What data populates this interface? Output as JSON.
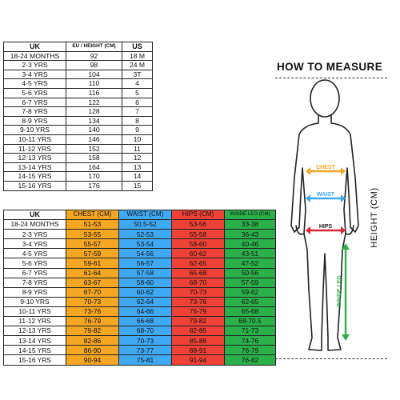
{
  "table1": {
    "headers": [
      "UK",
      "EU / HEIGHT (CM)",
      "US"
    ],
    "rows": [
      [
        "18-24 MONTHS",
        "92",
        "18 M"
      ],
      [
        "2-3 YRS",
        "98",
        "24 M"
      ],
      [
        "3-4 YRS",
        "104",
        "3T"
      ],
      [
        "4-5 YRS",
        "110",
        "4"
      ],
      [
        "5-6 YRS",
        "116",
        "5"
      ],
      [
        "6-7 YRS",
        "122",
        "6"
      ],
      [
        "7-8 YRS",
        "128",
        "7"
      ],
      [
        "8-9 YRS",
        "134",
        "8"
      ],
      [
        "9-10 YRS",
        "140",
        "9"
      ],
      [
        "10-11 YRS",
        "146",
        "10"
      ],
      [
        "11-12 YRS",
        "152",
        "11"
      ],
      [
        "12-13 YRS",
        "158",
        "12"
      ],
      [
        "13-14 YRS",
        "164",
        "13"
      ],
      [
        "14-15 YRS",
        "170",
        "14"
      ],
      [
        "15-16 YRS",
        "176",
        "15"
      ]
    ]
  },
  "table2": {
    "headers": [
      "UK",
      "CHEST (CM)",
      "WAIST (CM)",
      "HIPS (CM)",
      "INSIDE LEG (CM)"
    ],
    "column_colors": [
      "#ffffff",
      "#f5a623",
      "#3fa9f5",
      "#ef4136",
      "#2bb04a"
    ],
    "rows": [
      [
        "18-24 MONTHS",
        "51-53",
        "50.5-52",
        "53-56",
        "33-38"
      ],
      [
        "2-3 YRS",
        "53-55",
        "52-53",
        "55-58",
        "36-43"
      ],
      [
        "3-4 YRS",
        "55-57",
        "53-54",
        "58-60",
        "40-46"
      ],
      [
        "4-5 YRS",
        "57-59",
        "54-56",
        "60-62",
        "43-51"
      ],
      [
        "5-6 YRS",
        "59-61",
        "56-57",
        "62-65",
        "47-52"
      ],
      [
        "6-7 YRS",
        "61-64",
        "57-58",
        "65-68",
        "50-56"
      ],
      [
        "7-8 YRS",
        "63-67",
        "58-60",
        "68-70",
        "57-59"
      ],
      [
        "8-9 YRS",
        "67-70",
        "60-62",
        "70-73",
        "59-62"
      ],
      [
        "9-10 YRS",
        "70-73",
        "62-64",
        "73-76",
        "62-65"
      ],
      [
        "10-11 YRS",
        "73-76",
        "64-66",
        "76-79",
        "65-68"
      ],
      [
        "11-12 YRS",
        "76-79",
        "66-68",
        "79-82",
        "68-70.5"
      ],
      [
        "12-13 YRS",
        "79-82",
        "68-70",
        "82-85",
        "71-73"
      ],
      [
        "13-14 YRS",
        "82-86",
        "70-73",
        "85-88",
        "74-76"
      ],
      [
        "14-15 YRS",
        "86-90",
        "73-77",
        "88-91",
        "76-79"
      ],
      [
        "15-16 YRS",
        "90-94",
        "75-81",
        "91-94",
        "76-82"
      ]
    ]
  },
  "measure": {
    "title": "HOW TO MEASURE",
    "height_label": "HEIGHT (CM)",
    "chest_label": "CHEST",
    "waist_label": "WAIST",
    "hips_label": "HIPS",
    "inside_leg_label": "INSIDE LEG",
    "chest_color": "#f5a623",
    "waist_color": "#3fa9f5",
    "hips_color": "#d9262f",
    "inside_leg_color": "#2bb04a"
  }
}
